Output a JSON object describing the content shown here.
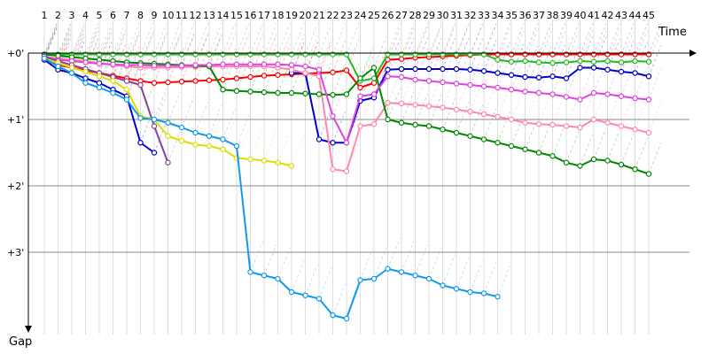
{
  "chart_data": {
    "type": "line",
    "xlabel": "Time",
    "ylabel": "Gap",
    "x_ticks": [
      "1",
      "2",
      "3",
      "4",
      "5",
      "6",
      "7",
      "8",
      "9",
      "10",
      "11",
      "12",
      "13",
      "14",
      "15",
      "16",
      "17",
      "18",
      "19",
      "20",
      "21",
      "22",
      "23",
      "24",
      "25",
      "26",
      "27",
      "28",
      "29",
      "30",
      "31",
      "32",
      "33",
      "34",
      "35",
      "36",
      "37",
      "38",
      "39",
      "40",
      "41",
      "42",
      "43",
      "44",
      "45"
    ],
    "y_ticks": [
      "+0'",
      "+1'",
      "+2'",
      "+3'"
    ],
    "ylim_minutes": [
      -0.35,
      4.1
    ],
    "invert_y": true,
    "grid": true,
    "series": [
      {
        "color": "#ff0000",
        "x": [
          1,
          2,
          3,
          4,
          5,
          6,
          7,
          8,
          9,
          10,
          11,
          12,
          13,
          14,
          15,
          16,
          17,
          18,
          19,
          20,
          21,
          22,
          23,
          24,
          25,
          26,
          27,
          28,
          29,
          30,
          31,
          32,
          33,
          34,
          35,
          36,
          37,
          38,
          39,
          40,
          41,
          42,
          43,
          44,
          45
        ],
        "y": [
          0.1,
          0.18,
          0.22,
          0.26,
          0.3,
          0.34,
          0.38,
          0.42,
          0.45,
          0.44,
          0.43,
          0.42,
          0.41,
          0.4,
          0.38,
          0.36,
          0.34,
          0.33,
          0.32,
          0.31,
          0.3,
          0.29,
          0.26,
          0.52,
          0.45,
          0.1,
          0.09,
          0.07,
          0.06,
          0.05,
          0.04,
          0.03,
          0.02,
          0.02,
          0.02,
          0.02,
          0.02,
          0.02,
          0.02,
          0.02,
          0.02,
          0.02,
          0.02,
          0.02,
          0.02
        ]
      },
      {
        "color": "#22bb22",
        "x": [
          1,
          2,
          3,
          4,
          5,
          6,
          7,
          8,
          9,
          10,
          11,
          12,
          13,
          14,
          15,
          16,
          17,
          18,
          19,
          20,
          21,
          22,
          23,
          24,
          25,
          26,
          27,
          28,
          29,
          30,
          31,
          32,
          33,
          34,
          35,
          36,
          37,
          38,
          39,
          40,
          41,
          42,
          43,
          44,
          45
        ],
        "y": [
          0.02,
          0.02,
          0.02,
          0.02,
          0.02,
          0.02,
          0.02,
          0.02,
          0.02,
          0.02,
          0.02,
          0.02,
          0.02,
          0.02,
          0.02,
          0.02,
          0.02,
          0.02,
          0.02,
          0.02,
          0.02,
          0.02,
          0.02,
          0.42,
          0.38,
          0.02,
          0.02,
          0.02,
          0.02,
          0.02,
          0.02,
          0.02,
          0.02,
          0.1,
          0.13,
          0.12,
          0.14,
          0.15,
          0.14,
          0.12,
          0.13,
          0.12,
          0.14,
          0.12,
          0.13
        ]
      },
      {
        "color": "#0000cc",
        "x": [
          1,
          2,
          3,
          4,
          5,
          6,
          7,
          8,
          9
        ],
        "y": [
          0.1,
          0.25,
          0.3,
          0.38,
          0.45,
          0.55,
          0.65,
          1.35,
          1.5
        ]
      },
      {
        "color": "#0000cc",
        "x": [
          19,
          20,
          21,
          22,
          23,
          24,
          25,
          26,
          27,
          28,
          29,
          30,
          31,
          32,
          33,
          34,
          35,
          36,
          37,
          38,
          39,
          40,
          41,
          42,
          43,
          44,
          45
        ],
        "y": [
          0.3,
          0.3,
          1.3,
          1.35,
          1.35,
          0.72,
          0.67,
          0.25,
          0.24,
          0.24,
          0.24,
          0.24,
          0.24,
          0.25,
          0.27,
          0.3,
          0.33,
          0.36,
          0.37,
          0.35,
          0.38,
          0.22,
          0.22,
          0.25,
          0.28,
          0.3,
          0.35
        ]
      },
      {
        "color": "#ff88aa",
        "x": [
          1,
          2,
          3,
          4,
          5,
          6,
          7,
          8,
          9,
          10,
          11,
          12,
          13,
          14,
          15,
          16,
          17,
          18,
          19,
          20,
          21,
          22,
          23,
          24,
          25,
          26,
          27,
          28,
          29,
          30,
          31,
          32,
          33,
          34,
          35,
          36,
          37,
          38,
          39,
          40,
          41,
          42,
          43,
          44,
          45
        ],
        "y": [
          0.05,
          0.08,
          0.1,
          0.12,
          0.15,
          0.18,
          0.2,
          0.22,
          0.22,
          0.22,
          0.21,
          0.21,
          0.2,
          0.2,
          0.2,
          0.2,
          0.2,
          0.22,
          0.25,
          0.3,
          0.35,
          1.75,
          1.78,
          1.1,
          1.07,
          0.75,
          0.76,
          0.78,
          0.8,
          0.82,
          0.85,
          0.88,
          0.92,
          0.96,
          1.0,
          1.05,
          1.07,
          1.08,
          1.1,
          1.12,
          1.0,
          1.05,
          1.1,
          1.15,
          1.2
        ]
      },
      {
        "color": "#008800",
        "x": [
          1,
          2,
          3,
          4,
          5,
          6,
          7,
          8,
          9,
          10,
          11,
          12,
          13,
          14,
          15,
          16,
          17,
          18,
          19,
          20,
          21,
          22,
          23,
          24,
          25,
          26,
          27,
          28,
          29,
          30,
          31,
          32,
          33,
          34,
          35,
          36,
          37,
          38,
          39,
          40,
          41,
          42,
          43,
          44,
          45
        ],
        "y": [
          0.02,
          0.04,
          0.06,
          0.08,
          0.1,
          0.12,
          0.14,
          0.15,
          0.16,
          0.17,
          0.18,
          0.19,
          0.2,
          0.55,
          0.57,
          0.58,
          0.59,
          0.6,
          0.6,
          0.61,
          0.62,
          0.63,
          0.62,
          0.38,
          0.22,
          1.0,
          1.05,
          1.08,
          1.1,
          1.15,
          1.2,
          1.25,
          1.3,
          1.35,
          1.4,
          1.45,
          1.5,
          1.55,
          1.65,
          1.7,
          1.6,
          1.62,
          1.68,
          1.75,
          1.82
        ]
      },
      {
        "color": "#dd44dd",
        "x": [
          1,
          2,
          3,
          4,
          5,
          6,
          7,
          8,
          9,
          10,
          11,
          12,
          13,
          14,
          15,
          16,
          17,
          18,
          19,
          20,
          21,
          22,
          23,
          24,
          25,
          26,
          27,
          28,
          29,
          30,
          31,
          32,
          33,
          34,
          35,
          36,
          37,
          38,
          39,
          40,
          41,
          42,
          43,
          44,
          45
        ],
        "y": [
          0.07,
          0.1,
          0.12,
          0.14,
          0.16,
          0.17,
          0.18,
          0.18,
          0.19,
          0.19,
          0.19,
          0.18,
          0.18,
          0.17,
          0.17,
          0.17,
          0.17,
          0.17,
          0.18,
          0.2,
          0.25,
          0.95,
          1.35,
          0.65,
          0.62,
          0.35,
          0.36,
          0.4,
          0.42,
          0.44,
          0.46,
          0.48,
          0.5,
          0.52,
          0.55,
          0.58,
          0.6,
          0.62,
          0.66,
          0.7,
          0.6,
          0.62,
          0.65,
          0.68,
          0.7
        ]
      },
      {
        "color": "#884499",
        "x": [
          1,
          2,
          3,
          4,
          5,
          6,
          7,
          8,
          9,
          10
        ],
        "y": [
          0.05,
          0.12,
          0.18,
          0.24,
          0.3,
          0.36,
          0.42,
          0.48,
          1.1,
          1.65
        ]
      },
      {
        "color": "#dddd00",
        "x": [
          1,
          2,
          3,
          4,
          5,
          6,
          7,
          8,
          9,
          10,
          11,
          12,
          13,
          14,
          15,
          16,
          17,
          18,
          19
        ],
        "y": [
          0.08,
          0.15,
          0.22,
          0.28,
          0.35,
          0.42,
          0.55,
          0.95,
          1.0,
          1.25,
          1.32,
          1.38,
          1.4,
          1.45,
          1.58,
          1.6,
          1.62,
          1.65,
          1.7
        ]
      },
      {
        "color": "#1199ee",
        "x": [
          1,
          2,
          3,
          4,
          5,
          6,
          7,
          8,
          9,
          10,
          11,
          12,
          13,
          14,
          15,
          16,
          17,
          18,
          19,
          20,
          21,
          22,
          23,
          24,
          25,
          26,
          27,
          28,
          29,
          30,
          31,
          32,
          33,
          34
        ],
        "y": [
          0.08,
          0.2,
          0.3,
          0.45,
          0.52,
          0.6,
          0.7,
          0.98,
          1.0,
          1.05,
          1.12,
          1.2,
          1.25,
          1.3,
          1.4,
          3.3,
          3.35,
          3.4,
          3.6,
          3.65,
          3.7,
          3.95,
          4.0,
          3.42,
          3.4,
          3.25,
          3.3,
          3.35,
          3.4,
          3.5,
          3.55,
          3.6,
          3.62,
          3.67
        ]
      }
    ]
  }
}
